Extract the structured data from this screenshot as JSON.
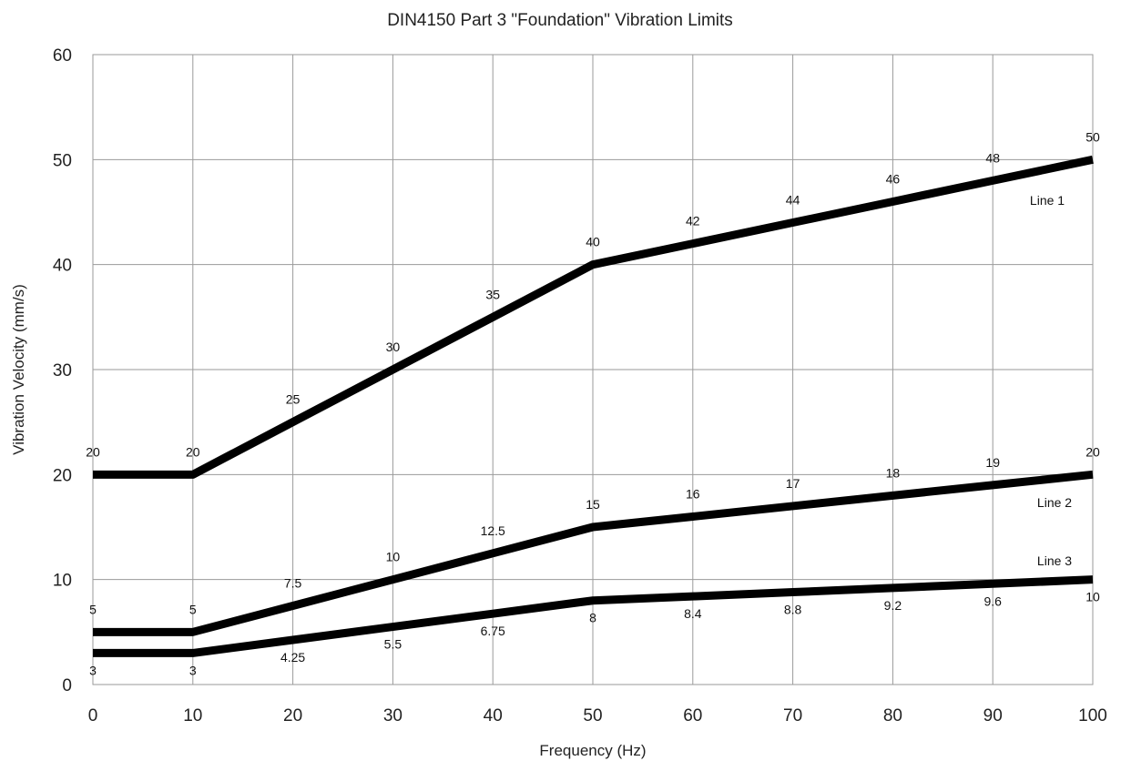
{
  "chart_data": {
    "type": "line",
    "title": "DIN4150 Part 3 \"Foundation\" Vibration  Limits",
    "xlabel": "Frequency (Hz)",
    "ylabel": "Vibration Velocity (mm/s)",
    "xlim": [
      0,
      100
    ],
    "ylim": [
      0,
      60
    ],
    "x_ticks": [
      0,
      10,
      20,
      30,
      40,
      50,
      60,
      70,
      80,
      90,
      100
    ],
    "y_ticks": [
      0,
      10,
      20,
      30,
      40,
      50,
      60
    ],
    "grid": true,
    "legend": "none",
    "series": [
      {
        "name": "Line 1",
        "x": [
          0,
          10,
          20,
          30,
          40,
          50,
          60,
          70,
          80,
          90,
          100
        ],
        "y": [
          20,
          20,
          25,
          30,
          35,
          40,
          42,
          44,
          46,
          48,
          50
        ],
        "labels": [
          "20",
          "20",
          "25",
          "30",
          "35",
          "40",
          "42",
          "44",
          "46",
          "48",
          "50"
        ]
      },
      {
        "name": "Line 2",
        "x": [
          0,
          10,
          20,
          30,
          40,
          50,
          60,
          70,
          80,
          90,
          100
        ],
        "y": [
          5,
          5,
          7.5,
          10,
          12.5,
          15,
          16,
          17,
          18,
          19,
          20
        ],
        "labels": [
          "5",
          "5",
          "7.5",
          "10",
          "12.5",
          "15",
          "16",
          "17",
          "18",
          "19",
          "20"
        ]
      },
      {
        "name": "Line 3",
        "x": [
          0,
          10,
          20,
          30,
          40,
          50,
          60,
          70,
          80,
          90,
          100
        ],
        "y": [
          3,
          3,
          4.25,
          5.5,
          6.75,
          8,
          8.4,
          8.8,
          9.2,
          9.6,
          10
        ],
        "labels": [
          "3",
          "3",
          "4.25",
          "5.5",
          "6.75",
          "8",
          "8.4",
          "8.8",
          "9.2",
          "9.6",
          "10"
        ]
      }
    ]
  }
}
